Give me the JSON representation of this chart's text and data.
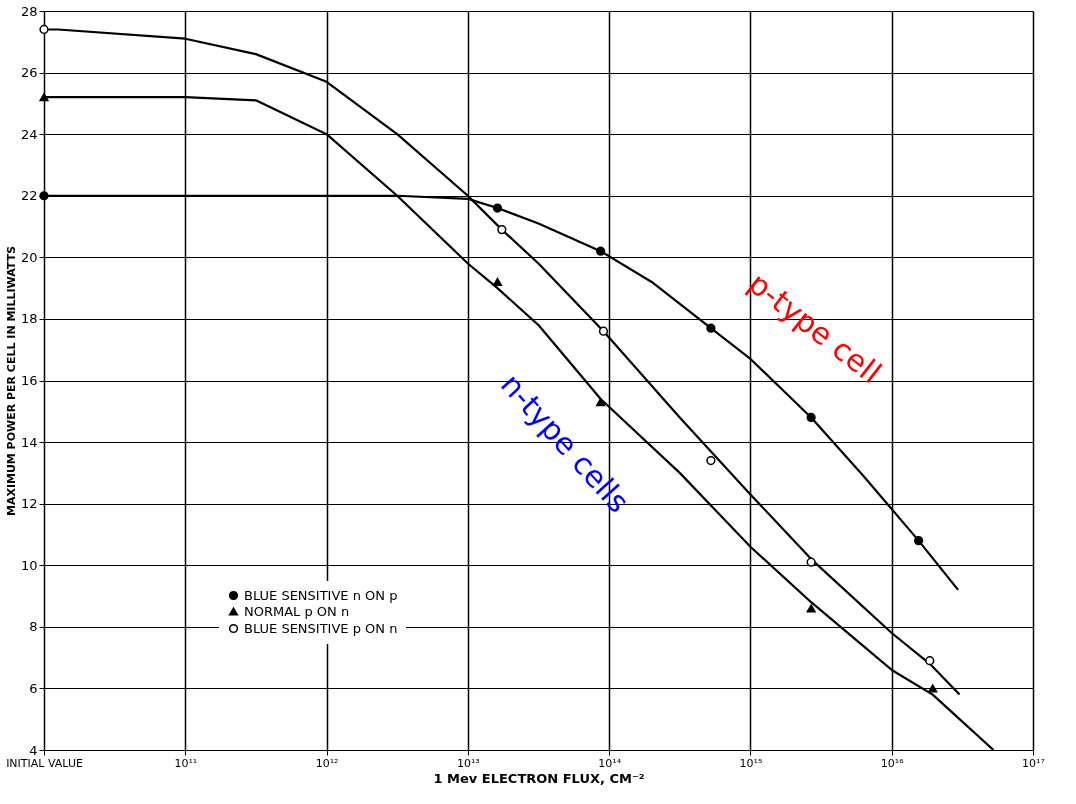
{
  "chart_data": {
    "type": "line",
    "xlabel": "1 Mev ELECTRON FLUX, CM⁻²",
    "ylabel": "MAXIMUM POWER PER CELL IN MILLIWATTS",
    "log": "x",
    "xlim": [
      10000000000.0,
      1e+17
    ],
    "xticks": [
      {
        "value": 10000000000.0,
        "label": "INITIAL VALUE"
      },
      {
        "value": 100000000000.0,
        "label": "10¹¹"
      },
      {
        "value": 1000000000000.0,
        "label": "10¹²"
      },
      {
        "value": 10000000000000.0,
        "label": "10¹³"
      },
      {
        "value": 100000000000000.0,
        "label": "10¹⁴"
      },
      {
        "value": 1000000000000000.0,
        "label": "10¹⁵"
      },
      {
        "value": 1e+16,
        "label": "10¹⁶"
      },
      {
        "value": 1e+17,
        "label": "10¹⁷"
      }
    ],
    "ylim": [
      4,
      28
    ],
    "yticks": [
      4,
      6,
      8,
      10,
      12,
      14,
      16,
      18,
      20,
      22,
      24,
      26,
      28
    ],
    "grid": true,
    "legend": "bottom left",
    "line_style": "solid",
    "series": [
      {
        "type": "line",
        "color": "#000000",
        "marker": "none",
        "x": [
          10000000000.0,
          12600000000.0,
          100000000000.0,
          1000000000000.0,
          3160000000000.0,
          10000000000000.0,
          16200000000000.0,
          31600000000000.0,
          87100000000000.0,
          200000000000000.0,
          525000000000000.0,
          1000000000000000.0,
          2690000000000000.0,
          6310000000000000.0,
          1.55e+16,
          2.95e+16
        ],
        "values": [
          22.0,
          22.0,
          22.0,
          22.0,
          22.0,
          21.9,
          21.6,
          21.1,
          20.2,
          19.2,
          17.7,
          16.7,
          14.8,
          12.9,
          10.8,
          9.2
        ]
      },
      {
        "type": "line",
        "color": "#000000",
        "marker": "none",
        "x": [
          10000000000.0,
          12600000000.0,
          100000000000.0,
          316000000000.0,
          1000000000000.0,
          3160000000000.0,
          10000000000000.0,
          16200000000000.0,
          31600000000000.0,
          87100000000000.0,
          316000000000000.0,
          1000000000000000.0,
          2690000000000000.0,
          1e+16,
          1.95e+16,
          5.25e+16
        ],
        "values": [
          25.2,
          25.2,
          25.2,
          25.1,
          24.0,
          22.0,
          19.8,
          19.0,
          17.8,
          15.4,
          13.0,
          10.6,
          8.8,
          6.6,
          5.8,
          4.0
        ]
      },
      {
        "type": "line",
        "color": "#000000",
        "marker": "none",
        "x": [
          10000000000.0,
          12600000000.0,
          100000000000.0,
          316000000000.0,
          1000000000000.0,
          3160000000000.0,
          10000000000000.0,
          17400000000000.0,
          31600000000000.0,
          91200000000000.0,
          316000000000000.0,
          1000000000000000.0,
          2690000000000000.0,
          1e+16,
          1.86e+16,
          3.02e+16
        ],
        "values": [
          27.4,
          27.4,
          27.1,
          26.6,
          25.7,
          24.0,
          22.0,
          20.9,
          19.8,
          17.6,
          14.8,
          12.3,
          10.2,
          7.8,
          6.8,
          5.8
        ]
      },
      {
        "type": "scatter",
        "name": "BLUE SENSITIVE n ON p",
        "color": "#000000",
        "marker": "circle",
        "x": [
          10000000000.0,
          16200000000000.0,
          87100000000000.0,
          525000000000000.0,
          2690000000000000.0,
          1.55e+16
        ],
        "values": [
          22.0,
          21.6,
          20.2,
          17.7,
          14.8,
          10.8
        ]
      },
      {
        "type": "scatter",
        "name": "NORMAL p ON n",
        "color": "#000000",
        "marker": "triangle",
        "x": [
          10000000000.0,
          16200000000000.0,
          87100000000000.0,
          2690000000000000.0,
          1.95e+16
        ],
        "values": [
          25.2,
          19.2,
          15.3,
          8.6,
          6.0
        ]
      },
      {
        "type": "scatter",
        "name": "BLUE SENSITIVE p ON n",
        "color": "#ffffff",
        "marker": "circle",
        "x": [
          10000000000.0,
          17400000000000.0,
          91200000000000.0,
          525000000000000.0,
          2690000000000000.0,
          1.86e+16
        ],
        "values": [
          27.4,
          20.9,
          17.6,
          13.4,
          10.1,
          6.9
        ]
      }
    ],
    "annotations": [
      "p-type cell",
      "n-type cells"
    ]
  }
}
